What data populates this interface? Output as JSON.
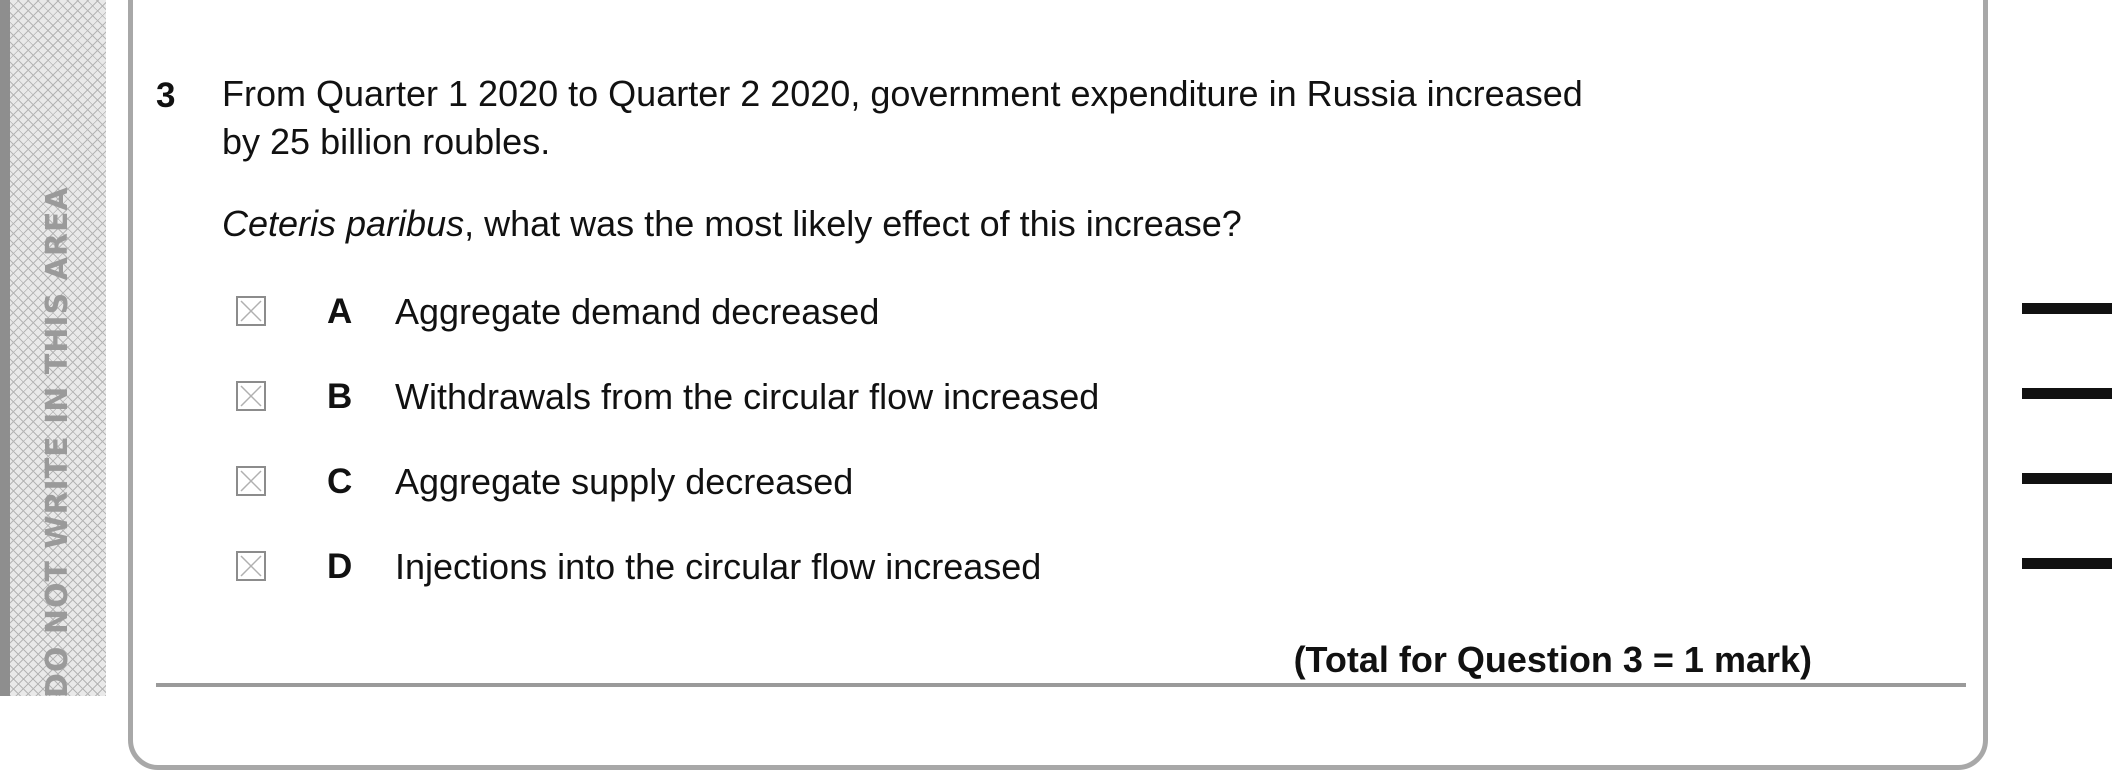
{
  "margin": {
    "warning_text": "DO NOT WRITE IN THIS AREA"
  },
  "question": {
    "number": "3",
    "stem_line1": "From Quarter 1 2020 to Quarter 2 2020, government expenditure in Russia increased",
    "stem_line2": "by 25 billion roubles.",
    "prompt_italic": "Ceteris paribus",
    "prompt_rest": ", what was the most likely effect of this increase?",
    "options": [
      {
        "letter": "A",
        "text": "Aggregate demand decreased"
      },
      {
        "letter": "B",
        "text": "Withdrawals from the circular flow increased"
      },
      {
        "letter": "C",
        "text": "Aggregate supply decreased"
      },
      {
        "letter": "D",
        "text": "Injections into the circular flow increased"
      }
    ],
    "total": "(Total for Question 3 = 1 mark)"
  },
  "icons": {
    "answer_box": "crossed-box-icon"
  },
  "colors": {
    "text": "#111111",
    "frame": "#a8a8a8",
    "margin_text": "#9a9a9a"
  }
}
